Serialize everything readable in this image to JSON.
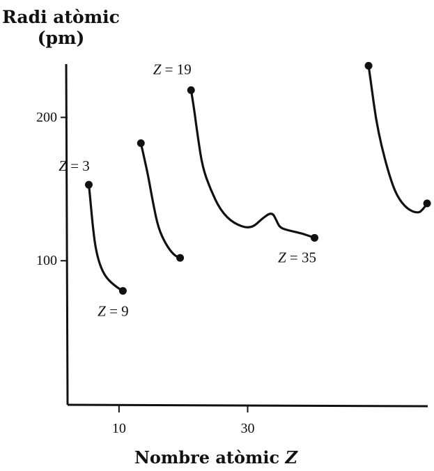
{
  "chart_data": {
    "type": "line",
    "ylabel": [
      "Radi atòmic",
      "(pm)"
    ],
    "xlabel_text": "Nombre atòmic",
    "xlabel_var": "Z",
    "xlim": [
      2,
      58
    ],
    "ylim": [
      0,
      243
    ],
    "x_ticks": [
      {
        "value": 10,
        "label": "10"
      },
      {
        "value": 30,
        "label": "30"
      }
    ],
    "y_ticks": [
      {
        "value": 100,
        "label": "100"
      },
      {
        "value": 200,
        "label": "200"
      }
    ],
    "series": [
      {
        "points": [
          [
            5.3,
            153
          ],
          [
            5.6,
            140
          ],
          [
            5.9,
            125
          ],
          [
            6.3,
            110
          ],
          [
            7.0,
            97
          ],
          [
            8.0,
            88
          ],
          [
            9.5,
            82
          ],
          [
            10.6,
            79
          ]
        ]
      },
      {
        "points": [
          [
            13.4,
            182
          ],
          [
            13.9,
            172
          ],
          [
            14.5,
            160
          ],
          [
            15.3,
            140
          ],
          [
            16.1,
            123
          ],
          [
            17.2,
            112
          ],
          [
            18.5,
            104
          ],
          [
            19.5,
            102
          ]
        ]
      },
      {
        "points": [
          [
            21.2,
            219
          ],
          [
            21.7,
            205
          ],
          [
            22.3,
            185
          ],
          [
            23.0,
            165
          ],
          [
            24.2,
            150
          ],
          [
            25.8,
            135
          ],
          [
            27.8,
            126
          ],
          [
            30.5,
            122
          ],
          [
            32.4,
            130
          ],
          [
            33.8,
            134
          ],
          [
            34.5,
            128
          ],
          [
            35.0,
            123
          ],
          [
            36.5,
            121
          ],
          [
            38.5,
            119
          ],
          [
            40.4,
            116
          ]
        ]
      },
      {
        "points": [
          [
            48.8,
            236
          ],
          [
            49.3,
            220
          ],
          [
            49.9,
            200
          ],
          [
            50.8,
            180
          ],
          [
            52.0,
            160
          ],
          [
            53.2,
            145
          ],
          [
            54.8,
            136
          ],
          [
            56.5,
            133
          ],
          [
            57.3,
            136
          ],
          [
            57.9,
            140
          ]
        ]
      }
    ],
    "annotations": [
      {
        "var": "Z",
        "text": " = 3",
        "x": 5.3,
        "y": 153
      },
      {
        "var": "Z",
        "text": " = 9",
        "x": 10.6,
        "y": 79
      },
      {
        "var": "Z",
        "text": " = 19",
        "x": 21.2,
        "y": 219
      },
      {
        "var": "Z",
        "text": " = 35",
        "x": 40.4,
        "y": 116
      }
    ],
    "grid": false
  }
}
